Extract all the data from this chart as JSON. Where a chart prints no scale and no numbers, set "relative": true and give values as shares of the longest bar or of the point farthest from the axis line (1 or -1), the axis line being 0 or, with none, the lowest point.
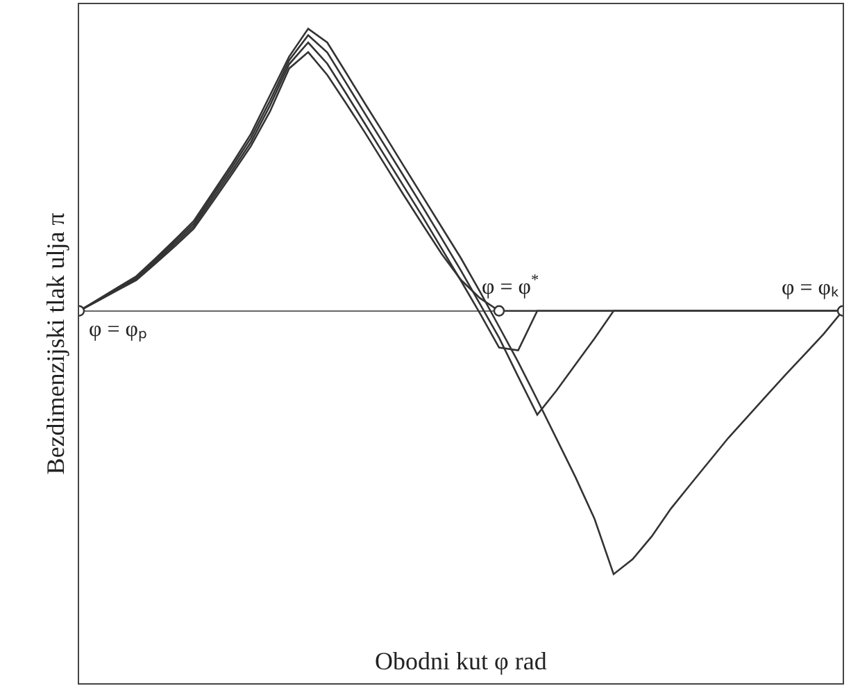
{
  "chart_data": {
    "type": "line",
    "relative": true,
    "xlabel": "Obodni kut φ rad",
    "ylabel": "Bezdimenzijski tlak ulja π",
    "marker": "none",
    "line_style": "solid",
    "categories": [
      null,
      null,
      null,
      null,
      null,
      null,
      null,
      null,
      null,
      null,
      null,
      null,
      null,
      null,
      null,
      null,
      null,
      null,
      null,
      null,
      null,
      null,
      null,
      null,
      null,
      null,
      null,
      null,
      null,
      null,
      null,
      null,
      null,
      null,
      null,
      null,
      null,
      null,
      null,
      null,
      null
    ],
    "series": [
      {
        "color": "#333333",
        "values": [
          0,
          0.036,
          0.073,
          0.109,
          0.168,
          0.228,
          0.291,
          0.387,
          0.484,
          0.584,
          0.707,
          0.859,
          0.917,
          0.836,
          0.734,
          0.629,
          0.52,
          0.411,
          0.305,
          0.201,
          0.11,
          0.045,
          0,
          0,
          0,
          0,
          0,
          0,
          0,
          0,
          0,
          0,
          0,
          0,
          0,
          0,
          0,
          0,
          0,
          0,
          0
        ]
      },
      {
        "color": "#333333",
        "values": [
          0,
          0.038,
          0.076,
          0.114,
          0.174,
          0.236,
          0.3,
          0.398,
          0.496,
          0.598,
          0.728,
          0.874,
          0.951,
          0.876,
          0.769,
          0.66,
          0.551,
          0.442,
          0.333,
          0.22,
          0.107,
          -0.009,
          -0.13,
          -0.14,
          0,
          0,
          0,
          0,
          0,
          0,
          0,
          0,
          0,
          0,
          0,
          0,
          0,
          0,
          0,
          0,
          0
        ]
      },
      {
        "color": "#333333",
        "values": [
          0,
          0.039,
          0.079,
          0.118,
          0.18,
          0.244,
          0.309,
          0.409,
          0.508,
          0.613,
          0.745,
          0.888,
          0.977,
          0.916,
          0.806,
          0.696,
          0.587,
          0.478,
          0.368,
          0.256,
          0.143,
          0.024,
          -0.095,
          -0.233,
          -0.368,
          -0.283,
          -0.19,
          -0.098,
          0,
          0,
          0,
          0,
          0,
          0,
          0,
          0,
          0,
          0,
          0,
          0,
          0
        ]
      },
      {
        "color": "#333333",
        "values": [
          0,
          0.041,
          0.082,
          0.123,
          0.186,
          0.251,
          0.318,
          0.419,
          0.52,
          0.627,
          0.764,
          0.901,
          1,
          0.951,
          0.842,
          0.732,
          0.624,
          0.514,
          0.405,
          0.296,
          0.187,
          0.068,
          -0.056,
          -0.181,
          -0.315,
          -0.452,
          -0.589,
          -0.737,
          -0.933,
          -0.88,
          -0.799,
          -0.701,
          -0.617,
          -0.534,
          -0.451,
          -0.376,
          -0.301,
          -0.227,
          -0.155,
          -0.082,
          0
        ]
      }
    ],
    "annotations": [
      "φ = φₚ",
      "φ = φ$^{*}$",
      "φ = φₖ"
    ]
  }
}
